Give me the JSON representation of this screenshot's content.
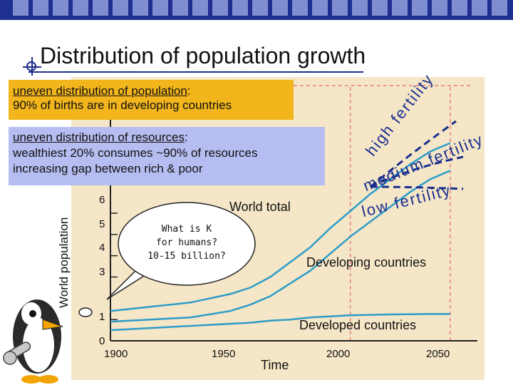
{
  "slide": {
    "title": "Distribution of population growth"
  },
  "births_callout": {
    "heading": "uneven distribution of population",
    "heading_suffix": ":",
    "line2": "90% of births are in developing countries"
  },
  "resources_callout": {
    "heading": "uneven distribution of resources",
    "heading_suffix": ":",
    "line2": "wealthiest 20% consumes ~90% of resources",
    "line3": "increasing gap between rich & poor"
  },
  "bubble": {
    "line1": "What is K",
    "line2": "for humans?",
    "line3": "10-15 billion?"
  },
  "chart_data": {
    "type": "line",
    "ylabel": "World population",
    "xlabel": "Time",
    "x_ticks": [
      "1900",
      "1950",
      "2000",
      "2050"
    ],
    "y_ticks": [
      "0",
      "1",
      "3",
      "4",
      "5",
      "6"
    ],
    "ylim": [
      0,
      12
    ],
    "xlim": [
      1880,
      2060
    ],
    "series": [
      {
        "name": "World total",
        "color": "#2d9cc8",
        "x": [
          1880,
          1900,
          1920,
          1940,
          1950,
          1960,
          1970,
          1980,
          1990,
          2000,
          2010,
          2020,
          2030,
          2040,
          2050
        ],
        "y": [
          1.4,
          1.6,
          1.8,
          2.2,
          2.5,
          3.0,
          3.7,
          4.4,
          5.3,
          6.1,
          6.9,
          7.6,
          8.3,
          8.9,
          9.3
        ]
      },
      {
        "name": "Developing countries",
        "color": "#2d9cc8",
        "x": [
          1880,
          1900,
          1920,
          1940,
          1950,
          1960,
          1970,
          1980,
          1990,
          2000,
          2010,
          2020,
          2030,
          2040,
          2050
        ],
        "y": [
          0.9,
          1.0,
          1.1,
          1.4,
          1.7,
          2.1,
          2.7,
          3.3,
          4.1,
          4.9,
          5.6,
          6.3,
          7.0,
          7.6,
          8.0
        ]
      },
      {
        "name": "Developed countries",
        "color": "#2d9cc8",
        "x": [
          1880,
          1900,
          1920,
          1940,
          1950,
          1960,
          1970,
          1980,
          1990,
          2000,
          2010,
          2020,
          2030,
          2040,
          2050
        ],
        "y": [
          0.5,
          0.6,
          0.7,
          0.8,
          0.85,
          0.95,
          1.0,
          1.1,
          1.15,
          1.2,
          1.22,
          1.24,
          1.25,
          1.26,
          1.26
        ]
      }
    ],
    "projections": [
      {
        "name": "high fertility",
        "color": "#1a2f8f"
      },
      {
        "name": "medium fertility",
        "color": "#1a2f8f"
      },
      {
        "name": "low fertility",
        "color": "#1a2f8f"
      }
    ],
    "projection_labels": {
      "high": "high fertility",
      "medium": "medium fertility",
      "low": "low fertility"
    },
    "colors": {
      "panel_bg": "#f5e6c7",
      "axis": "#222222",
      "projection_dash": "#e6807b"
    }
  }
}
